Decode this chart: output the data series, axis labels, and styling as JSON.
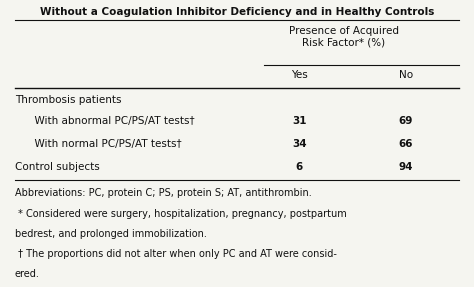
{
  "title": "Without a Coagulation Inhibitor Deficiency and in Healthy Controls",
  "header1": "Presence of Acquired\nRisk Factor* (%)",
  "col_headers": [
    "Yes",
    "No"
  ],
  "row_categories": [
    "Thrombosis patients",
    "  With abnormal PC/PS/AT tests†",
    "  With normal PC/PS/AT tests†",
    "Control subjects"
  ],
  "data": [
    [
      "",
      ""
    ],
    [
      "31",
      "69"
    ],
    [
      "34",
      "66"
    ],
    [
      "6",
      "94"
    ]
  ],
  "footnotes": [
    "Abbreviations: PC, protein C; PS, protein S; AT, antithrombin.",
    " * Considered were surgery, hospitalization, pregnancy, postpartum",
    "bedrest, and prolonged immobilization.",
    " † The proportions did not alter when only PC and AT were consid-",
    "ered."
  ],
  "bg_color": "#f5f5f0",
  "text_color": "#111111",
  "font_size": 7.5,
  "title_font_size": 7.5
}
